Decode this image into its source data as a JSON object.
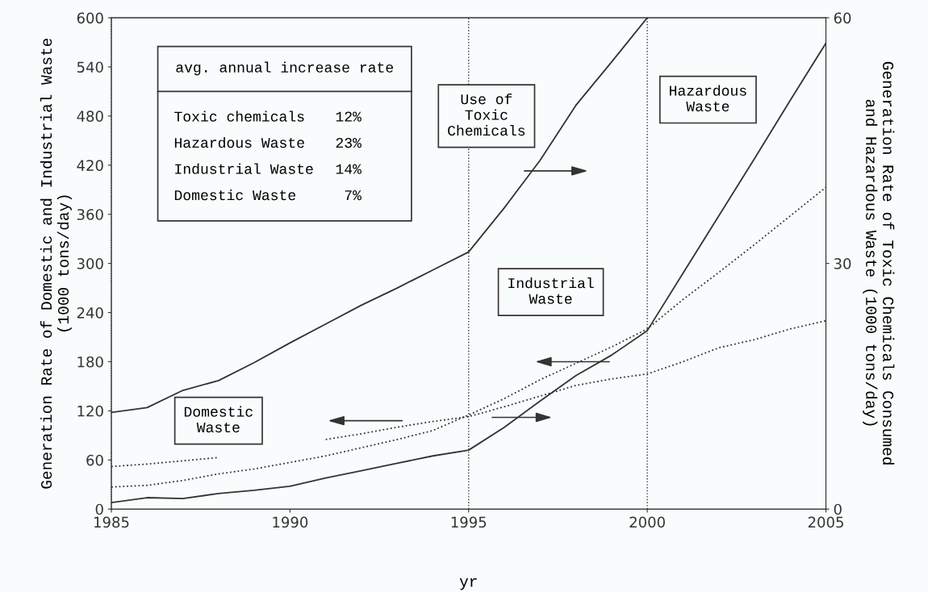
{
  "chart_data": {
    "type": "line",
    "xlabel": "yr",
    "ylabel": "Generation Rate of Domestic and Industrial Waste\n(1000 tons/day)",
    "y2label": "Generation Rate of Toxic Chemicals Consumed\nand Hazardous Waste (1000 tons/day)",
    "x": [
      1985,
      1986,
      1987,
      1988,
      1989,
      1990,
      1991,
      1992,
      1993,
      1994,
      1995,
      1996,
      1997,
      1998,
      1999,
      2000,
      2001,
      2002,
      2003,
      2004,
      2005
    ],
    "series": [
      {
        "name": "Use of Toxic Chemicals",
        "color": "#333333",
        "axis": "y2",
        "line_style": "solid",
        "values": [
          11.8,
          12.4,
          14.5,
          15.7,
          17.9,
          20.3,
          22.6,
          24.9,
          27.0,
          29.2,
          31.4,
          36.8,
          42.6,
          49.3,
          54.6,
          60,
          null,
          null,
          null,
          null,
          null
        ]
      },
      {
        "name": "Hazardous Waste",
        "color": "#333333",
        "axis": "y2",
        "line_style": "solid",
        "values": [
          0.8,
          1.4,
          1.3,
          1.9,
          2.3,
          2.8,
          3.8,
          4.7,
          5.6,
          6.5,
          7.2,
          10.0,
          13.2,
          16.3,
          18.8,
          21.8,
          28.8,
          35.8,
          42.8,
          49.9,
          56.9
        ]
      },
      {
        "name": "Industrial Waste",
        "color": "#333333",
        "line_style": "dotted",
        "values": [
          27,
          29,
          35,
          43,
          49,
          57,
          65,
          75,
          85,
          96,
          115,
          135,
          158,
          178,
          198,
          220,
          256,
          289,
          323,
          358,
          393
        ]
      },
      {
        "name": "Domestic Waste",
        "color": "#333333",
        "line_style": "dotted",
        "values": [
          52,
          55,
          59,
          63,
          null,
          null,
          85,
          92,
          100,
          107,
          113,
          125,
          138,
          151,
          159,
          165,
          180,
          197,
          207,
          220,
          230
        ]
      }
    ],
    "xlim": [
      1985,
      2005
    ],
    "xticks": [
      1985,
      1990,
      1995,
      2000,
      2005
    ],
    "ylim": [
      0,
      600
    ],
    "yticks": [
      0,
      60,
      120,
      180,
      240,
      300,
      360,
      420,
      480,
      540,
      600
    ],
    "y2lim": [
      0,
      60
    ],
    "y2ticks": [
      0,
      30,
      60
    ],
    "ref_lines": [
      {
        "axis": "x",
        "value": 1995,
        "color": "#333333",
        "line_style": "dotted"
      },
      {
        "axis": "x",
        "value": 2000,
        "color": "#333333",
        "line_style": "dotted"
      }
    ],
    "annotations": [
      "avg. annual increase rate",
      "Toxic chemicals 12%",
      "Hazardous Waste 23%",
      "Industrial Waste 14%",
      "Domestic Waste 7%"
    ],
    "grid": false,
    "legend": false
  }
}
